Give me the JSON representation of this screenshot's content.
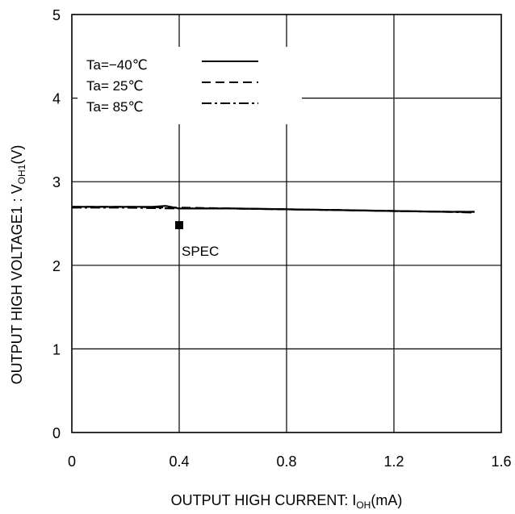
{
  "chart_data": {
    "type": "line",
    "xlabel": {
      "main": "OUTPUT HIGH CURRENT: I",
      "sub": "OH",
      "tail": "(mA)"
    },
    "ylabel": {
      "main": "OUTPUT HIGH VOLTAGE1 : V",
      "sub": "OH1",
      "tail": "(V)"
    },
    "xlim": [
      0,
      1.6
    ],
    "ylim": [
      0,
      5
    ],
    "x_ticks": [
      0,
      0.4,
      0.8,
      1.2,
      1.6
    ],
    "x_tick_labels": [
      "0",
      "0.4",
      "0.8",
      "1.2",
      "1.6"
    ],
    "y_ticks": [
      0,
      1,
      2,
      3,
      4,
      5
    ],
    "y_tick_labels": [
      "0",
      "1",
      "2",
      "3",
      "4",
      "5"
    ],
    "grid": true,
    "legend_position": "top-left",
    "series": [
      {
        "name": "Ta=−40℃",
        "dash": "solid",
        "x": [
          0,
          0.1,
          0.2,
          0.3,
          0.35,
          0.4,
          0.6,
          0.8,
          1.0,
          1.2,
          1.4,
          1.5
        ],
        "y": [
          2.7,
          2.7,
          2.7,
          2.7,
          2.71,
          2.68,
          2.68,
          2.67,
          2.66,
          2.65,
          2.64,
          2.64
        ]
      },
      {
        "name": "Ta= 25℃",
        "dash": "dashed",
        "x": [
          0,
          0.2,
          0.4,
          0.6,
          0.8,
          1.0,
          1.2,
          1.4,
          1.5
        ],
        "y": [
          2.7,
          2.7,
          2.69,
          2.68,
          2.67,
          2.66,
          2.65,
          2.64,
          2.64
        ]
      },
      {
        "name": "Ta= 85℃",
        "dash": "dashdot",
        "x": [
          0,
          0.2,
          0.4,
          0.6,
          0.8,
          1.0,
          1.2,
          1.4,
          1.5
        ],
        "y": [
          2.69,
          2.69,
          2.68,
          2.68,
          2.67,
          2.66,
          2.65,
          2.64,
          2.63
        ]
      }
    ],
    "spec_point": {
      "label": "SPEC",
      "x": 0.4,
      "y": 2.48
    }
  }
}
